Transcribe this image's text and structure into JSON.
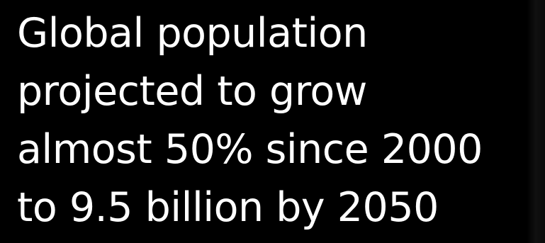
{
  "slide": {
    "headline_lines": [
      "Global population",
      "projected to grow",
      "almost 50% since 2000",
      "to 9.5 billion by 2050"
    ],
    "background_color": "#000000",
    "text_color": "#ffffff"
  }
}
